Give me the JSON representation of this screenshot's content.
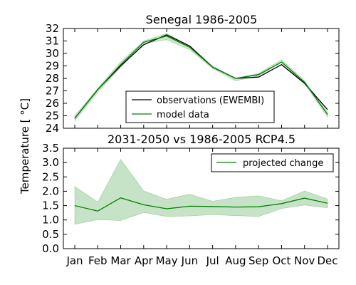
{
  "shared_ylabel": "Temperature [ °C]",
  "colors": {
    "observations": "#000000",
    "model": "#008000",
    "band_fill": "#008000"
  },
  "chart_data": [
    {
      "type": "line",
      "title": "Senegal  1986-2005",
      "xlabel": "",
      "ylabel": "",
      "categories": [
        "Jan",
        "Feb",
        "Mar",
        "Apr",
        "May",
        "Jun",
        "Jul",
        "Aug",
        "Sep",
        "Oct",
        "Nov",
        "Dec"
      ],
      "x_ticks_visible": false,
      "ylim": [
        24,
        32
      ],
      "yticks": [
        "24",
        "25",
        "26",
        "27",
        "28",
        "29",
        "30",
        "31",
        "32"
      ],
      "legend_position": "lower-center",
      "series": [
        {
          "name": "observations (EWEMBI)",
          "color": "#000000",
          "values": [
            24.8,
            27.1,
            29.0,
            30.7,
            31.5,
            30.6,
            28.9,
            28.0,
            28.1,
            29.1,
            27.6,
            25.5
          ]
        },
        {
          "name": "model data",
          "color": "#008000",
          "band_lower": [
            24.6,
            26.9,
            28.9,
            30.8,
            31.1,
            30.3,
            28.8,
            27.8,
            28.2,
            29.3,
            27.6,
            24.9
          ],
          "band_upper": [
            25.0,
            27.2,
            29.3,
            31.0,
            31.6,
            30.6,
            29.0,
            28.0,
            28.4,
            29.5,
            27.8,
            25.3
          ],
          "values": [
            24.8,
            27.1,
            29.1,
            30.9,
            31.4,
            30.5,
            28.9,
            28.0,
            28.3,
            29.3,
            27.7,
            25.1
          ]
        }
      ]
    },
    {
      "type": "line",
      "title": "2031-2050 vs 1986-2005 RCP4.5",
      "xlabel": "",
      "ylabel": "",
      "categories": [
        "Jan",
        "Feb",
        "Mar",
        "Apr",
        "May",
        "Jun",
        "Jul",
        "Aug",
        "Sep",
        "Oct",
        "Nov",
        "Dec"
      ],
      "ylim": [
        0.0,
        3.5
      ],
      "yticks": [
        "0.0",
        "0.5",
        "1.0",
        "1.5",
        "2.0",
        "2.5",
        "3.0",
        "3.5"
      ],
      "legend_position": "top-right",
      "series": [
        {
          "name": "projected change",
          "color": "#008000",
          "values": [
            1.5,
            1.31,
            1.77,
            1.53,
            1.39,
            1.48,
            1.47,
            1.45,
            1.46,
            1.57,
            1.76,
            1.58
          ],
          "band_lower": [
            0.85,
            1.01,
            0.98,
            1.26,
            1.12,
            1.14,
            1.19,
            1.15,
            1.12,
            1.4,
            1.52,
            1.42
          ],
          "band_upper": [
            2.17,
            1.62,
            3.11,
            2.01,
            1.72,
            1.9,
            1.65,
            1.79,
            1.84,
            1.67,
            2.01,
            1.73
          ]
        }
      ]
    }
  ]
}
